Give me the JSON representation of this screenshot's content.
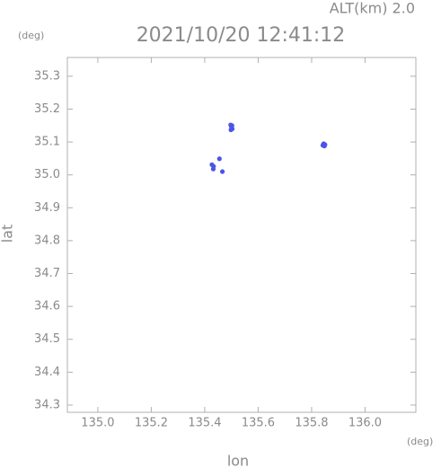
{
  "chart_data": {
    "type": "scatter",
    "title": "2021/10/20 12:41:12",
    "annotation": "ALT(km)  2.0",
    "y_unit": "(deg)",
    "x_unit": "(deg)",
    "xlabel": "lon",
    "ylabel": "lat",
    "xlim": [
      134.886,
      136.19
    ],
    "ylim": [
      34.278,
      35.357
    ],
    "xticks": [
      {
        "value": 135.0,
        "label": "135.0"
      },
      135.2,
      135.4,
      135.6,
      135.8,
      {
        "value": 136.0,
        "label": "136.0"
      }
    ],
    "yticks": [
      34.3,
      34.4,
      34.5,
      34.6,
      34.7,
      34.8,
      34.9,
      {
        "value": 35.0,
        "label": "35.0"
      },
      35.1,
      35.2,
      35.3
    ],
    "series": [
      {
        "color": "#4a55e8",
        "x": [
          135.497,
          135.5,
          135.503,
          135.498,
          135.502,
          135.845,
          135.85,
          135.842,
          135.848,
          135.427,
          135.433,
          135.455,
          135.466,
          135.432
        ],
        "y": [
          35.152,
          35.146,
          35.14,
          35.137,
          35.15,
          35.095,
          35.092,
          35.09,
          35.088,
          35.031,
          35.026,
          35.049,
          35.01,
          35.018
        ]
      }
    ]
  }
}
